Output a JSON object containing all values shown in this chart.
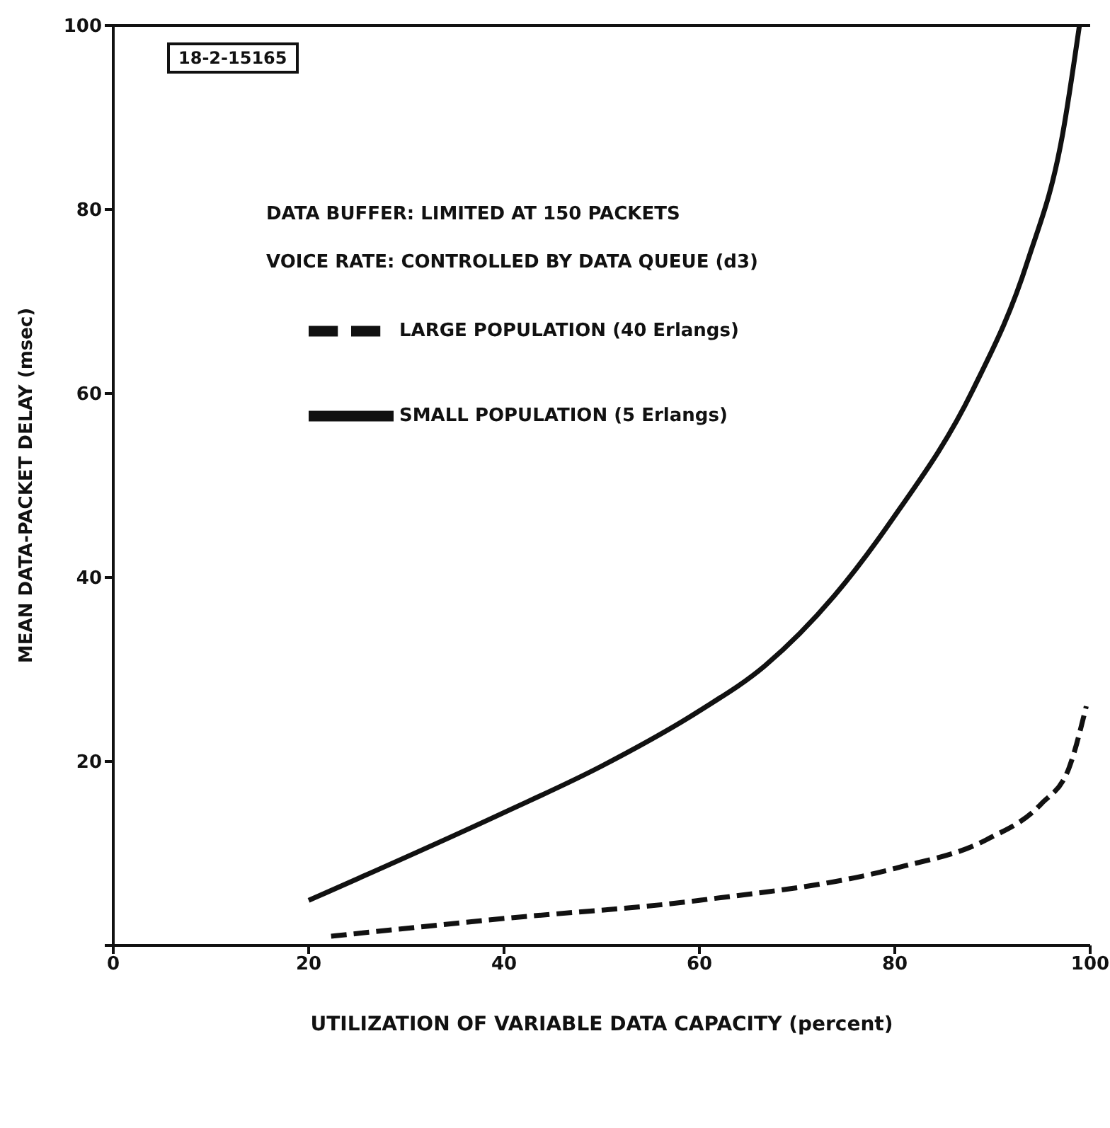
{
  "chart_data": {
    "type": "line",
    "xlabel": "UTILIZATION OF VARIABLE DATA CAPACITY (percent)",
    "ylabel": "MEAN DATA-PACKET DELAY (msec)",
    "legend_title": "VOICE RATE: CONTROLLED BY DATA QUEUE (d3)",
    "annotations": [
      "18-2-15165",
      "DATA BUFFER: LIMITED AT 150 PACKETS"
    ],
    "xlim": [
      0,
      100
    ],
    "ylim": [
      0,
      100
    ],
    "xticks": [
      0,
      20,
      40,
      60,
      80,
      100
    ],
    "yticks": [
      {
        "value": 0,
        "label": null
      },
      20,
      40,
      60,
      80,
      100
    ],
    "grid": false,
    "legend": "top left",
    "marker": "none",
    "series": [
      {
        "name": "SMALL POPULATION (5 Erlangs)",
        "color": "#111111",
        "line_style": "solid",
        "x": [
          20,
          39.7,
          50,
          60,
          66.7,
          73.8,
          79.8,
          88,
          93.6,
          97.2,
          98.9
        ],
        "values": [
          4.9,
          14.3,
          19.5,
          25.5,
          30.4,
          38,
          46.4,
          60.4,
          74.4,
          88.3,
          100
        ]
      },
      {
        "name": "LARGE POPULATION (40 Erlangs)",
        "color": "#111111",
        "line_style": "dashed",
        "x": [
          22.3,
          39.7,
          60,
          80.1,
          89.4,
          95,
          97.8,
          99.6
        ],
        "values": [
          1.0,
          2.9,
          4.9,
          8.4,
          11.5,
          15.4,
          19.2,
          26
        ]
      }
    ]
  }
}
